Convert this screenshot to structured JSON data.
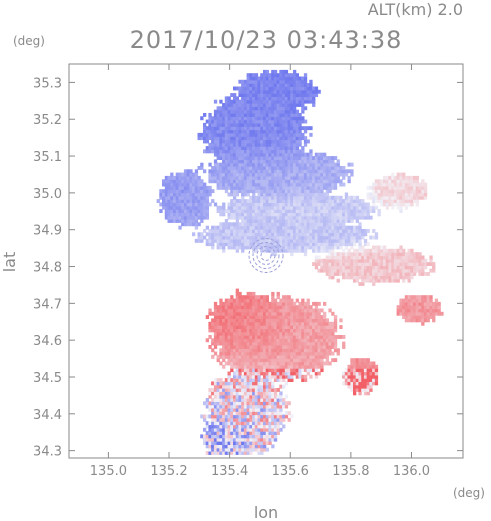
{
  "chart_data": {
    "type": "heatmap",
    "title": "2017/10/23 03:43:38",
    "altitude_label": "ALT(km) 2.0",
    "xlabel": "lon",
    "ylabel": "lat",
    "x_unit": "(deg)",
    "y_unit": "(deg)",
    "xlim": [
      134.87,
      136.17
    ],
    "ylim": [
      34.28,
      35.35
    ],
    "x_ticks": [
      {
        "value": 135.0,
        "label": "135.0"
      },
      {
        "value": 135.2,
        "label": "135.2"
      },
      {
        "value": 135.4,
        "label": "135.4"
      },
      {
        "value": 135.6,
        "label": "135.6"
      },
      {
        "value": 135.8,
        "label": "135.8"
      },
      {
        "value": 136.0,
        "label": "136.0"
      }
    ],
    "y_ticks": [
      {
        "value": 34.3,
        "label": "34.3"
      },
      {
        "value": 34.4,
        "label": "34.4"
      },
      {
        "value": 34.5,
        "label": "34.5"
      },
      {
        "value": 34.6,
        "label": "34.6"
      },
      {
        "value": 34.7,
        "label": "34.7"
      },
      {
        "value": 34.8,
        "label": "34.8"
      },
      {
        "value": 34.9,
        "label": "34.9"
      },
      {
        "value": 35.0,
        "label": "35.0"
      },
      {
        "value": 35.1,
        "label": "35.1"
      },
      {
        "value": 35.2,
        "label": "35.2"
      },
      {
        "value": 35.3,
        "label": "35.3"
      }
    ],
    "colors": {
      "negative": "#6f78ee",
      "neutral": "#f2f2f8",
      "positive": "#f25f66",
      "axis": "#8a8a8a"
    },
    "radar_center": {
      "lon": 135.52,
      "lat": 34.83
    },
    "regions": [
      {
        "name": "north-blue-core",
        "lon": 135.48,
        "lat": 35.16,
        "rx": 0.18,
        "ry": 0.11,
        "value": -0.85
      },
      {
        "name": "north-blue-upper",
        "lon": 135.55,
        "lat": 35.27,
        "rx": 0.14,
        "ry": 0.06,
        "value": -0.9
      },
      {
        "name": "north-blue-west",
        "lon": 135.25,
        "lat": 34.98,
        "rx": 0.09,
        "ry": 0.08,
        "value": -0.7
      },
      {
        "name": "north-blue-band",
        "lon": 135.55,
        "lat": 35.05,
        "rx": 0.25,
        "ry": 0.07,
        "value": -0.55
      },
      {
        "name": "north-pale-band",
        "lon": 135.62,
        "lat": 34.95,
        "rx": 0.27,
        "ry": 0.05,
        "value": -0.3
      },
      {
        "name": "mid-blue-band",
        "lon": 135.58,
        "lat": 34.88,
        "rx": 0.3,
        "ry": 0.05,
        "value": -0.35
      },
      {
        "name": "east-pink-band",
        "lon": 135.87,
        "lat": 34.8,
        "rx": 0.2,
        "ry": 0.05,
        "value": 0.3
      },
      {
        "name": "east-pink-upper",
        "lon": 135.95,
        "lat": 35.0,
        "rx": 0.1,
        "ry": 0.05,
        "value": 0.2
      },
      {
        "name": "south-red-core",
        "lon": 135.45,
        "lat": 34.64,
        "rx": 0.13,
        "ry": 0.09,
        "value": 0.85
      },
      {
        "name": "south-red-wide",
        "lon": 135.55,
        "lat": 34.6,
        "rx": 0.22,
        "ry": 0.12,
        "value": 0.55
      },
      {
        "name": "south-east-red",
        "lon": 135.83,
        "lat": 34.5,
        "rx": 0.06,
        "ry": 0.05,
        "value": 0.7
      },
      {
        "name": "south-mixed",
        "lon": 135.45,
        "lat": 34.4,
        "rx": 0.14,
        "ry": 0.12,
        "value": 0.0
      },
      {
        "name": "south-blue-tail",
        "lon": 135.38,
        "lat": 34.32,
        "rx": 0.08,
        "ry": 0.05,
        "value": -0.55
      },
      {
        "name": "east-red-patch",
        "lon": 136.02,
        "lat": 34.68,
        "rx": 0.08,
        "ry": 0.04,
        "value": 0.6
      }
    ]
  }
}
